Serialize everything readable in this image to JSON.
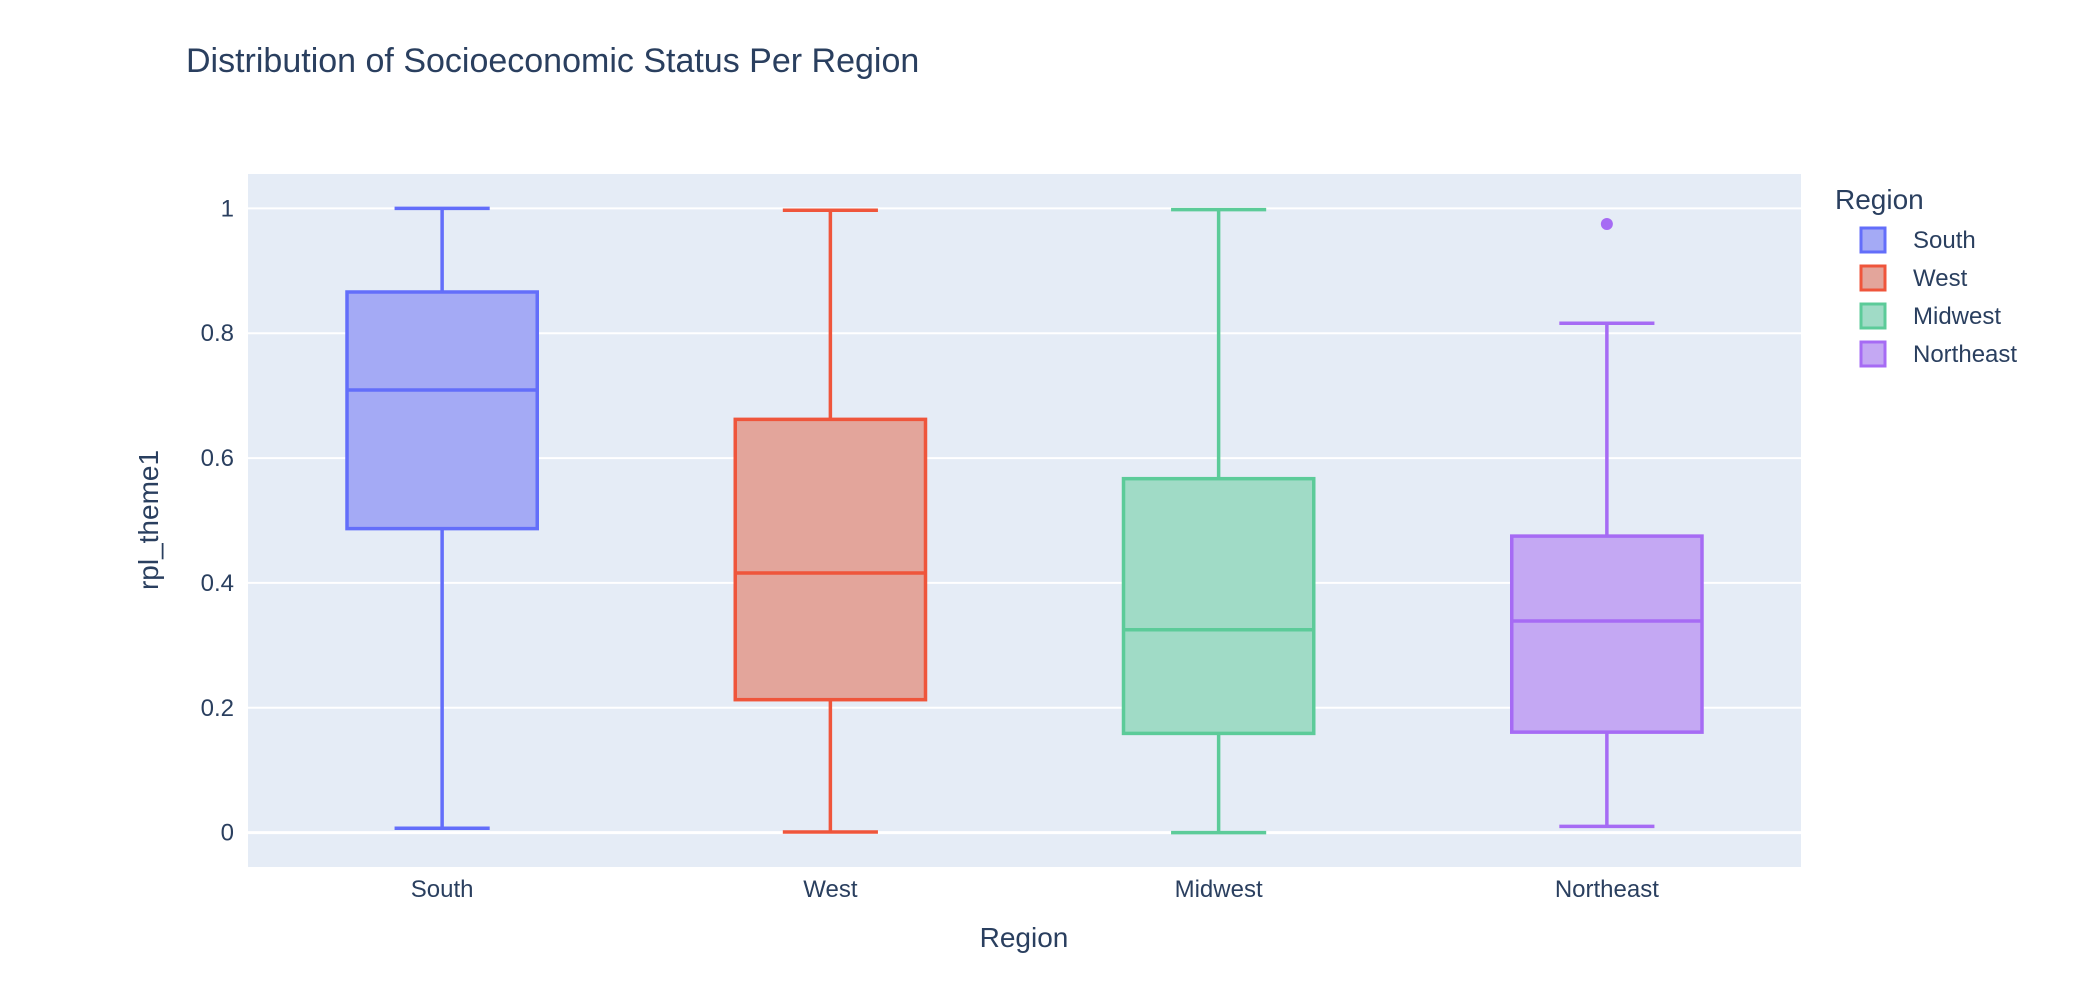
{
  "chart_data": {
    "type": "box",
    "title": "Distribution of Socioeconomic Status Per Region",
    "xlabel": "Region",
    "ylabel": "rpl_theme1",
    "ylim": [
      -0.055,
      1.055
    ],
    "yticks": [
      0,
      0.2,
      0.4,
      0.6,
      0.8,
      1
    ],
    "ytick_labels": [
      "0",
      "0.2",
      "0.4",
      "0.6",
      "0.8",
      "1"
    ],
    "grid": true,
    "legend": {
      "title": "Region",
      "position": "right"
    },
    "categories": [
      "South",
      "West",
      "Midwest",
      "Northeast"
    ],
    "series": [
      {
        "name": "South",
        "color": "#636efa",
        "fill": "#a4aaf5",
        "min": 0.007,
        "q1": 0.487,
        "median": 0.709,
        "q3": 0.866,
        "max": 1.0,
        "outliers": []
      },
      {
        "name": "West",
        "color": "#ef553b",
        "fill": "#e3a59b",
        "min": 0.001,
        "q1": 0.213,
        "median": 0.416,
        "q3": 0.662,
        "max": 0.997,
        "outliers": []
      },
      {
        "name": "Midwest",
        "color": "#00cc96",
        "fill": "#a0dbc6",
        "min": 0.0,
        "q1": 0.159,
        "median": 0.325,
        "q3": 0.567,
        "max": 0.998,
        "outliers": []
      },
      {
        "name": "Northeast",
        "color": "#ab63fa",
        "fill": "#c4a8f3",
        "min": 0.01,
        "q1": 0.161,
        "median": 0.339,
        "q3": 0.475,
        "max": 0.816,
        "outliers": [
          0.975
        ]
      }
    ],
    "box_colors": {
      "South": "#636efa",
      "West": "#ef553b",
      "Midwest": "#5ccb99",
      "Northeast": "#a66bf4"
    }
  }
}
